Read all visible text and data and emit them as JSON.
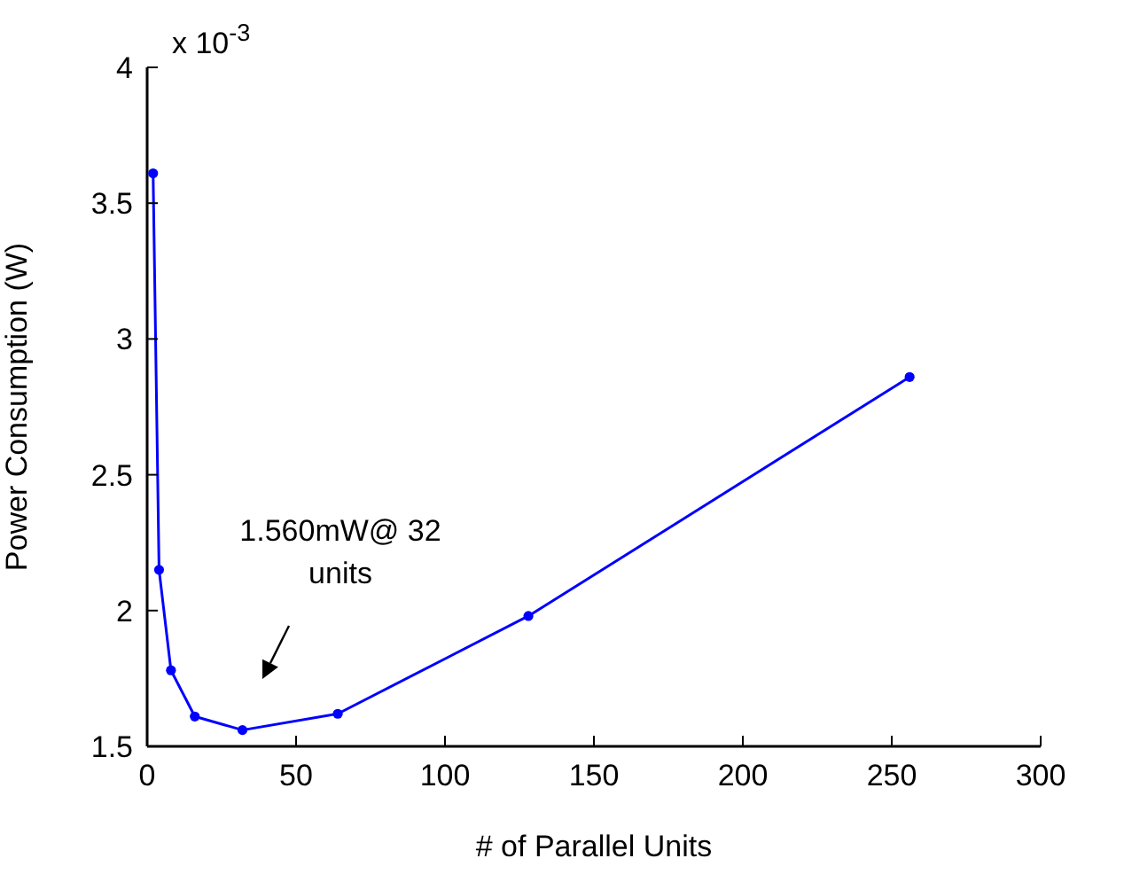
{
  "chart_data": {
    "type": "line",
    "xlabel": "#  of Parallel Units",
    "ylabel": "Power Consumption (W)",
    "x": [
      2,
      4,
      8,
      16,
      32,
      64,
      128,
      256
    ],
    "series": [
      {
        "color": "#0000ff",
        "values": [
          3.61,
          2.15,
          1.78,
          1.61,
          1.56,
          1.62,
          1.98,
          2.86
        ]
      }
    ],
    "xlim": [
      0,
      300
    ],
    "xticks": [
      0,
      50,
      100,
      150,
      200,
      250,
      300
    ],
    "ylim": [
      1.5,
      4
    ],
    "yticks": [
      1.5,
      2,
      2.5,
      3,
      3.5,
      4
    ],
    "annotations": [
      "x 10$^{-3}$",
      "1.560mW@ 32 units"
    ],
    "marker": "circle",
    "line_style": "solid",
    "grid": false,
    "legend": false
  }
}
